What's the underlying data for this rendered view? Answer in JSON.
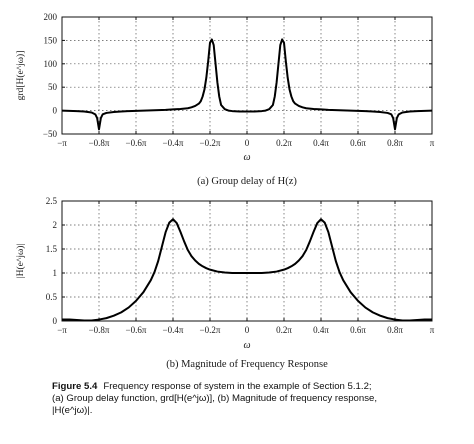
{
  "figure": {
    "caption_label": "Figure 5.4",
    "caption_lines": [
      "Frequency response of system in the example of Section 5.1.2;",
      "(a) Group delay function, grd[H(e^jω)], (b) Magnitude of frequency response,",
      "|H(e^jω)|."
    ]
  },
  "chart_data": [
    {
      "type": "line",
      "subcaption": "(a) Group delay of H(z)",
      "xlabel": "ω",
      "ylabel": "grd[H(e^jω)]",
      "xlim": [
        -3.14159,
        3.14159
      ],
      "ylim": [
        -50,
        200
      ],
      "grid": true,
      "x_ticks": [
        -3.14159,
        -2.51327,
        -1.88496,
        -1.25664,
        -0.62832,
        0,
        0.62832,
        1.25664,
        1.88496,
        2.51327,
        3.14159
      ],
      "x_tick_labels": [
        "−π",
        "−0.8π",
        "−0.6π",
        "−0.4π",
        "−0.2π",
        "0",
        "0.2π",
        "0.4π",
        "0.6π",
        "0.8π",
        "π"
      ],
      "y_ticks": [
        -50,
        0,
        50,
        100,
        150,
        200
      ],
      "y_tick_labels": [
        "−50",
        "0",
        "50",
        "100",
        "150",
        "200"
      ],
      "series": [
        {
          "x": [
            -3.14159,
            -3.0159,
            -2.8903,
            -2.7646,
            -2.6389,
            -2.5761,
            -2.5447,
            -2.5133,
            -2.4819,
            -2.4504,
            -2.3876,
            -2.2619,
            -2.1363,
            -2.0106,
            -1.885,
            -1.7593,
            -1.6336,
            -1.508,
            -1.3823,
            -1.2566,
            -1.131,
            -1.0053,
            -0.9425,
            -0.8796,
            -0.8168,
            -0.7854,
            -0.754,
            -0.7226,
            -0.6912,
            -0.6597,
            -0.6283,
            -0.5969,
            -0.5655,
            -0.5341,
            -0.5027,
            -0.4712,
            -0.4398,
            -0.377,
            -0.3142,
            -0.2513,
            -0.1257,
            0,
            0.1257,
            0.2513,
            0.3142,
            0.377,
            0.4398,
            0.4712,
            0.5027,
            0.5341,
            0.5655,
            0.5969,
            0.6283,
            0.6597,
            0.6912,
            0.7226,
            0.754,
            0.7854,
            0.8168,
            0.8796,
            0.9425,
            1.0053,
            1.131,
            1.2566,
            1.3823,
            1.508,
            1.6336,
            1.7593,
            1.885,
            2.0106,
            2.1363,
            2.2619,
            2.3876,
            2.4504,
            2.4819,
            2.5133,
            2.5447,
            2.5761,
            2.6389,
            2.7646,
            2.8903,
            3.0159,
            3.14159
          ],
          "y": [
            0,
            -0.5,
            -1,
            -2,
            -4,
            -8,
            -16,
            -40,
            -16,
            -8,
            -5,
            -3,
            -2,
            -1,
            -0.5,
            0,
            0.5,
            1,
            1.5,
            2.5,
            3.5,
            5,
            7,
            10,
            15,
            20,
            30,
            45,
            70,
            105,
            145,
            152,
            140,
            100,
            60,
            30,
            12,
            3,
            0,
            -1,
            -2,
            -2,
            -2,
            -1,
            0,
            3,
            12,
            30,
            60,
            100,
            140,
            152,
            145,
            105,
            70,
            45,
            30,
            20,
            15,
            10,
            7,
            5,
            3.5,
            2.5,
            1.5,
            1,
            0.5,
            0,
            -0.5,
            -1,
            -2,
            -3,
            -5,
            -8,
            -16,
            -40,
            -16,
            -8,
            -4,
            -2,
            -1,
            -0.5,
            0
          ]
        }
      ]
    },
    {
      "type": "line",
      "subcaption": "(b) Magnitude of Frequency Response",
      "xlabel": "ω",
      "ylabel": "|H(e^jω)|",
      "xlim": [
        -3.14159,
        3.14159
      ],
      "ylim": [
        0,
        2.5
      ],
      "grid": true,
      "x_ticks": [
        -3.14159,
        -2.51327,
        -1.88496,
        -1.25664,
        -0.62832,
        0,
        0.62832,
        1.25664,
        1.88496,
        2.51327,
        3.14159
      ],
      "x_tick_labels": [
        "−π",
        "−0.8π",
        "−0.6π",
        "−0.4π",
        "−0.2π",
        "0",
        "0.2π",
        "0.4π",
        "0.6π",
        "0.8π",
        "π"
      ],
      "y_ticks": [
        0,
        0.5,
        1,
        1.5,
        2,
        2.5
      ],
      "y_tick_labels": [
        "0",
        "0.5",
        "1",
        "1.5",
        "2",
        "2.5"
      ],
      "series": [
        {
          "x": [
            -3.14159,
            -3.0159,
            -2.8903,
            -2.7646,
            -2.6389,
            -2.5133,
            -2.3876,
            -2.2619,
            -2.1363,
            -2.0106,
            -1.885,
            -1.7593,
            -1.6336,
            -1.5708,
            -1.508,
            -1.4451,
            -1.3823,
            -1.3195,
            -1.2566,
            -1.1938,
            -1.131,
            -1.0681,
            -1.0053,
            -0.9425,
            -0.8796,
            -0.8168,
            -0.754,
            -0.6912,
            -0.6283,
            -0.5027,
            -0.377,
            -0.2513,
            -0.1257,
            0,
            0.1257,
            0.2513,
            0.377,
            0.5027,
            0.6283,
            0.6912,
            0.754,
            0.8168,
            0.8796,
            0.9425,
            1.0053,
            1.0681,
            1.131,
            1.1938,
            1.2566,
            1.3195,
            1.3823,
            1.4451,
            1.508,
            1.5708,
            1.6336,
            1.7593,
            1.885,
            2.0106,
            2.1363,
            2.2619,
            2.3876,
            2.5133,
            2.6389,
            2.7646,
            2.8903,
            3.0159,
            3.14159
          ],
          "y": [
            0.03,
            0.03,
            0.02,
            0.01,
            0.01,
            0.03,
            0.06,
            0.11,
            0.18,
            0.28,
            0.42,
            0.6,
            0.85,
            1.02,
            1.25,
            1.55,
            1.85,
            2.05,
            2.12,
            2.04,
            1.86,
            1.66,
            1.48,
            1.35,
            1.26,
            1.19,
            1.14,
            1.1,
            1.07,
            1.03,
            1.01,
            1.0,
            1.0,
            1.0,
            1.0,
            1.0,
            1.01,
            1.03,
            1.07,
            1.1,
            1.14,
            1.19,
            1.26,
            1.35,
            1.48,
            1.66,
            1.86,
            2.04,
            2.12,
            2.05,
            1.85,
            1.55,
            1.25,
            1.02,
            0.85,
            0.6,
            0.42,
            0.28,
            0.18,
            0.11,
            0.06,
            0.03,
            0.01,
            0.01,
            0.02,
            0.03,
            0.03
          ]
        }
      ]
    }
  ]
}
